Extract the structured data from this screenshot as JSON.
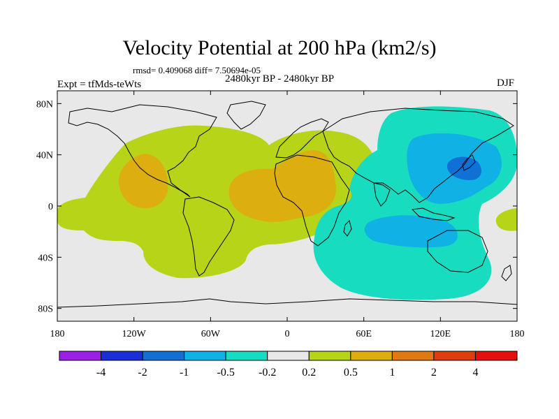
{
  "title": "Velocity Potential at 200 hPa (km2/s)",
  "stats_line": "rmsd= 0.409068 diff= 7.50694e-05",
  "period": "2480kyr BP - 2480kyr BP",
  "experiment": "Expt = tfMds-teWts",
  "season": "DJF",
  "chart_data": {
    "type": "filled-contour-map",
    "variable": "Velocity Potential at 200 hPa",
    "units": "km2/s",
    "projection": "cylindrical equidistant",
    "lon_range": [
      -180,
      180
    ],
    "lat_range": [
      -90,
      90
    ],
    "x_ticks": [
      {
        "lon": -180,
        "label": "180"
      },
      {
        "lon": -120,
        "label": "120W"
      },
      {
        "lon": -60,
        "label": "60W"
      },
      {
        "lon": 0,
        "label": "0"
      },
      {
        "lon": 60,
        "label": "60E"
      },
      {
        "lon": 120,
        "label": "120E"
      },
      {
        "lon": 180,
        "label": "180"
      }
    ],
    "y_ticks": [
      {
        "lat": 80,
        "label": "80N"
      },
      {
        "lat": 40,
        "label": "40N"
      },
      {
        "lat": 0,
        "label": "0"
      },
      {
        "lat": -40,
        "label": "40S"
      },
      {
        "lat": -80,
        "label": "80S"
      }
    ],
    "colorbar": {
      "levels": [
        "-4",
        "-2",
        "-1",
        "-0.5",
        "-0.2",
        "0.2",
        "0.5",
        "1",
        "2",
        "4"
      ],
      "colors": [
        "#9b1fe6",
        "#1c2fd6",
        "#1070d6",
        "#10b2e6",
        "#18dcc0",
        "#e8e8e8",
        "#b8d418",
        "#dcae10",
        "#e07a10",
        "#dc3e0c",
        "#e41010"
      ]
    },
    "regions": [
      {
        "name": "western hemisphere positive band",
        "class": "0.2 to 0.5",
        "color": "#b8d418"
      },
      {
        "name": "Central America maximum",
        "class": "0.5 to 1",
        "color": "#dcae10"
      },
      {
        "name": "Atlantic-Africa maximum",
        "class": "0.5 to 1",
        "color": "#dcae10"
      },
      {
        "name": "Indo-Pacific negative region",
        "class": "-0.5 to -0.2",
        "color": "#18dcc0"
      },
      {
        "name": "Asia-Pacific inner minimum",
        "class": "-1 to -0.5",
        "color": "#10b2e6"
      },
      {
        "name": "Japan minimum",
        "class": "-2 to -1",
        "color": "#1070d6"
      },
      {
        "name": "Australia inner minimum",
        "class": "-1 to -0.5",
        "color": "#10b2e6"
      },
      {
        "name": "eastern Pacific positive patch",
        "class": "0.2 to 0.5",
        "color": "#b8d418"
      }
    ]
  }
}
